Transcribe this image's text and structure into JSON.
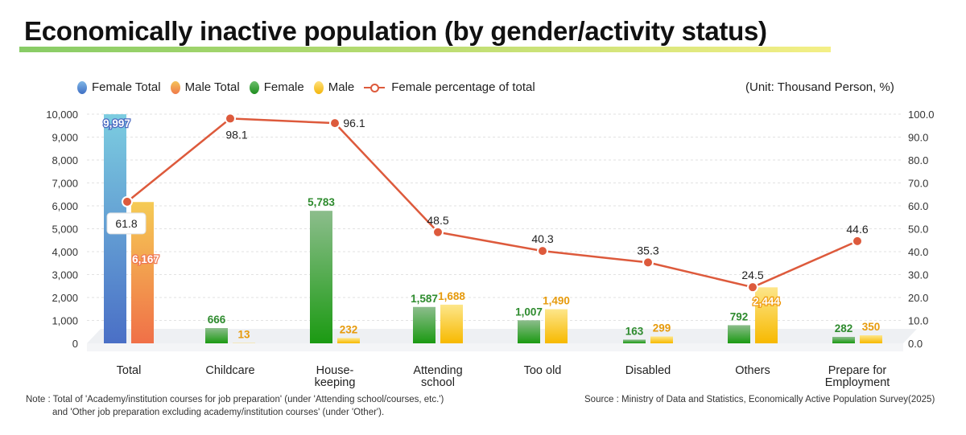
{
  "title": "Economically inactive population (by gender/activity status)",
  "unit": "(Unit: Thousand Person, %)",
  "legend": {
    "female_total": "Female Total",
    "male_total": "Male Total",
    "female": "Female",
    "male": "Male",
    "pct": "Female percentage of total"
  },
  "colors": {
    "female_total": "#5b8fd6",
    "male_total": "#f3a157",
    "female": "#2e9d2e",
    "male": "#f5c21b",
    "pct_line": "#dd5a3c",
    "female_label": "#2e8b2e",
    "male_label": "#e69a0c"
  },
  "note": {
    "line1": "Note : Total of 'Academy/institution courses for job preparation' (under 'Attending school/courses, etc.')",
    "line2": "and 'Other job preparation excluding academy/institution courses' (under 'Other')."
  },
  "source": "Source : Ministry of Data and Statistics, Economically Active Population Survey(2025)",
  "chart_data": {
    "type": "bar",
    "categories": [
      "Total",
      "Childcare",
      "House-\nkeeping",
      "Attending\nschool",
      "Too old",
      "Disabled",
      "Others",
      "Prepare for\nEmployment"
    ],
    "series": [
      {
        "name": "Female",
        "values": [
          9997,
          666,
          5783,
          1587,
          1007,
          163,
          792,
          282
        ],
        "labels": [
          "9,997",
          "666",
          "5,783",
          "1,587",
          "1,007",
          "163",
          "792",
          "282"
        ]
      },
      {
        "name": "Male",
        "values": [
          6167,
          13,
          232,
          1688,
          1490,
          299,
          2444,
          350
        ],
        "labels": [
          "6,167",
          "13",
          "232",
          "1,688",
          "1,490",
          "299",
          "2,444",
          "350"
        ]
      },
      {
        "name": "Female percentage of total",
        "axis": "right",
        "type": "line",
        "values": [
          61.8,
          98.1,
          96.1,
          48.5,
          40.3,
          35.3,
          24.5,
          44.6
        ],
        "labels": [
          "61.8",
          "98.1",
          "96.1",
          "48.5",
          "40.3",
          "35.3",
          "24.5",
          "44.6"
        ]
      }
    ],
    "ylim": [
      0,
      10000
    ],
    "y2lim": [
      0,
      100
    ],
    "yticks": [
      "0",
      "1,000",
      "2,000",
      "3,000",
      "4,000",
      "5,000",
      "6,000",
      "7,000",
      "8,000",
      "9,000",
      "10,000"
    ],
    "y2ticks": [
      "0.0",
      "10.0",
      "20.0",
      "30.0",
      "40.0",
      "50.0",
      "60.0",
      "70.0",
      "80.0",
      "90.0",
      "100.0"
    ],
    "grid": true,
    "legend_position": "top-left"
  }
}
